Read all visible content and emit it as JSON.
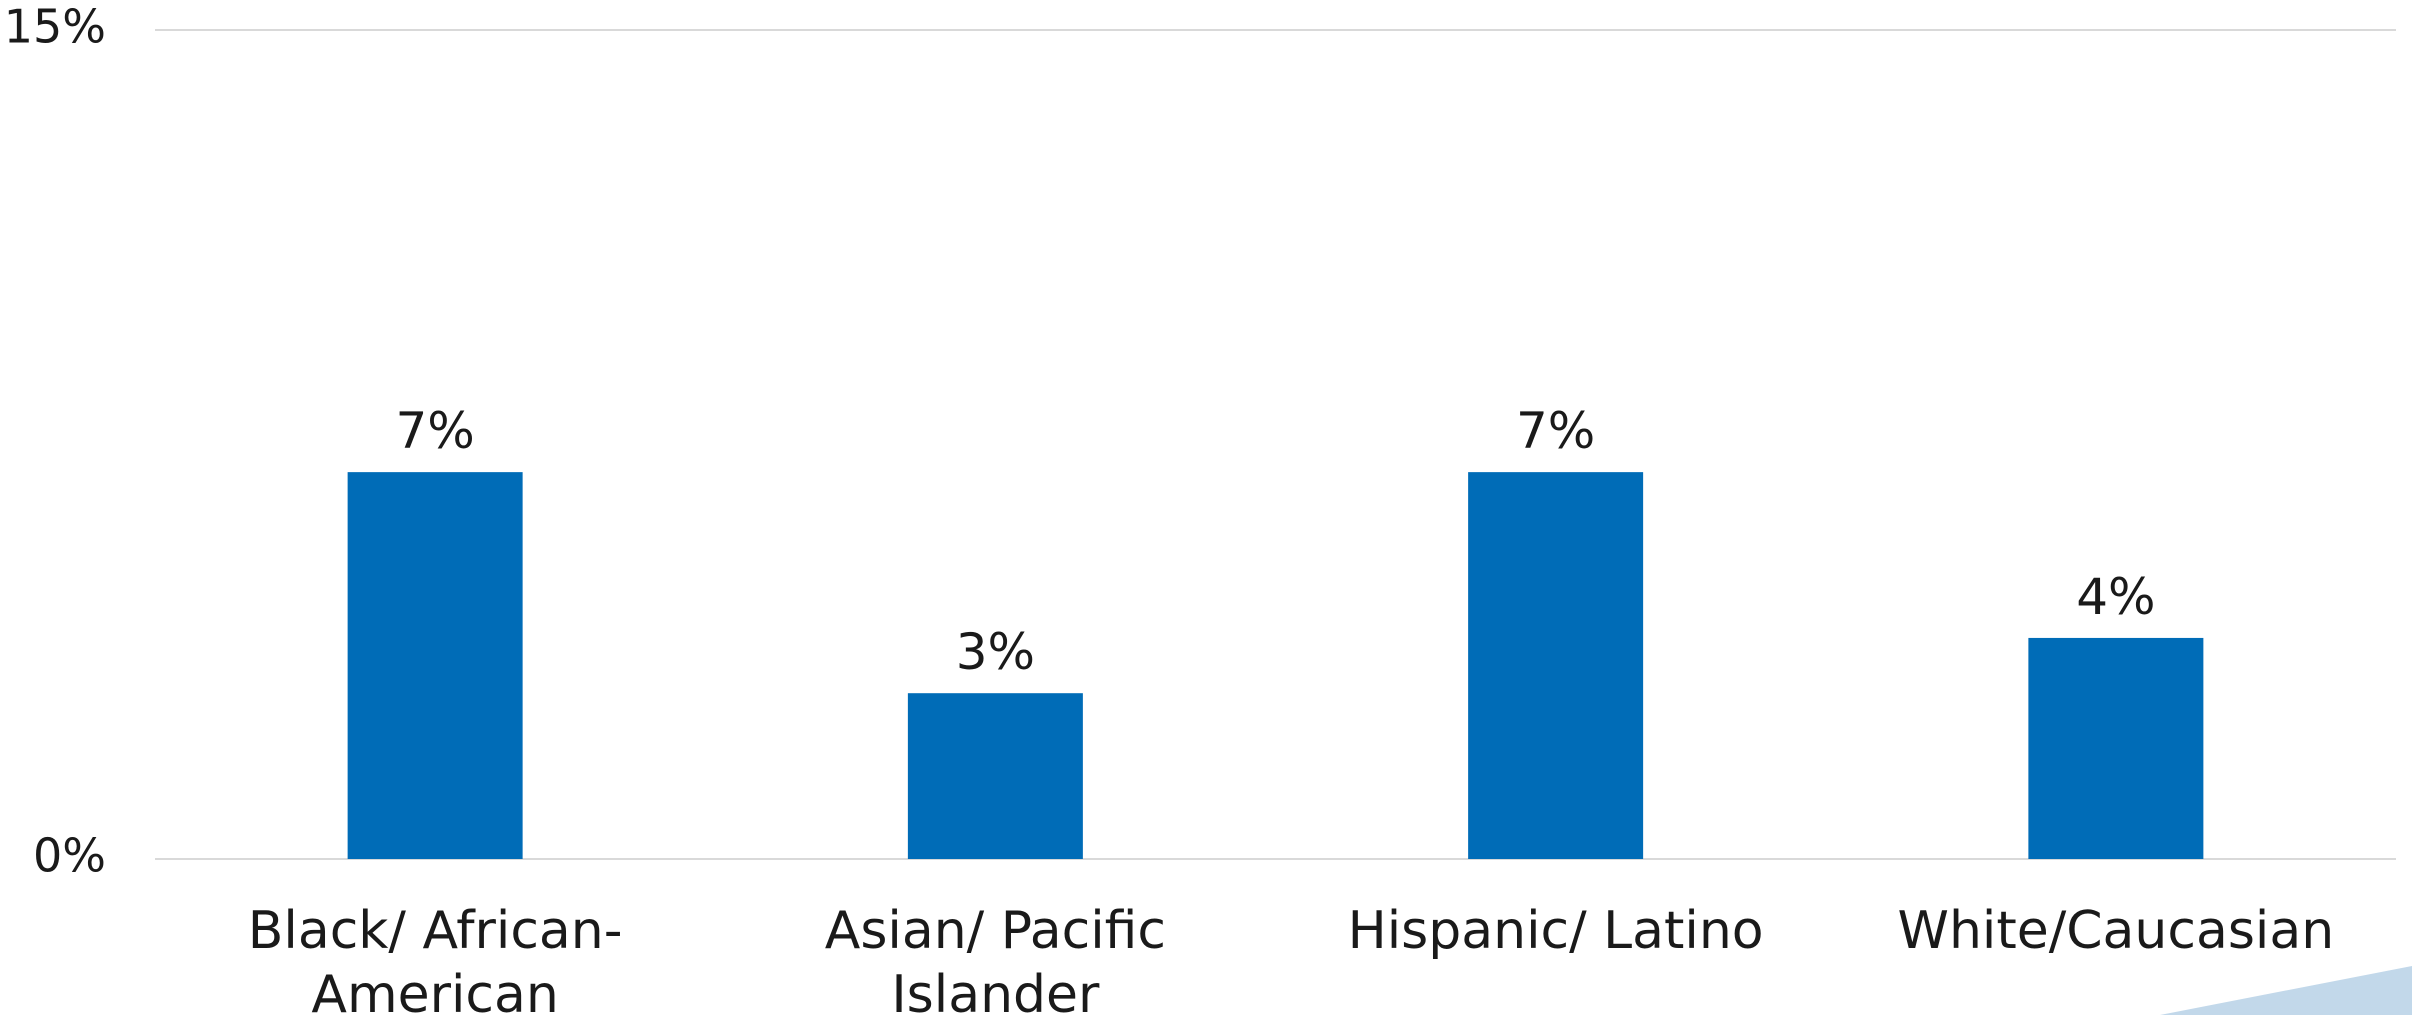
{
  "chart_data": {
    "type": "bar",
    "categories": [
      [
        "Black/ African-",
        "American"
      ],
      [
        "Asian/ Pacific",
        "Islander"
      ],
      [
        "Hispanic/ Latino"
      ],
      [
        "White/Caucasian"
      ]
    ],
    "values": [
      7,
      3,
      7,
      4
    ],
    "data_labels": [
      "7%",
      "3%",
      "7%",
      "4%"
    ],
    "ylim": [
      0,
      15
    ],
    "y_ticks": [
      {
        "value": 0,
        "label": "0%"
      },
      {
        "value": 15,
        "label": "15%"
      }
    ],
    "grid": true,
    "legend": "none",
    "title": "",
    "xlabel": "",
    "ylabel": ""
  },
  "colors": {
    "bar": "#006cb7",
    "gridline": "#d9d9d9",
    "text": "#1a1a1a",
    "accent_shape": "#c2d8ea"
  }
}
